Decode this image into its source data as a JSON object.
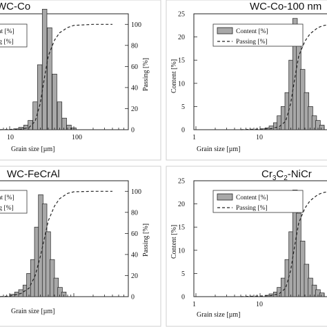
{
  "chart_data": [
    {
      "type": "bar",
      "title": "WC-Co",
      "xlabel": "Grain size [µm]",
      "ylabel": "",
      "y2label": "Passing [%]",
      "xscale": "log",
      "xticks": [
        "10",
        "100"
      ],
      "yticks": [],
      "y2ticks": [
        "0",
        "20",
        "40",
        "60",
        "80",
        "100"
      ],
      "ylim": [
        0,
        25
      ],
      "y2lim": [
        0,
        110
      ],
      "legend": [
        "Content [%]",
        "Passing [%]"
      ],
      "legend_position": "top-left",
      "series": [
        {
          "name": "Content [%]",
          "x": [
            12.5,
            15,
            18,
            21,
            25,
            29.5,
            35,
            42,
            50,
            60,
            71,
            84,
            100
          ],
          "values": [
            0.2,
            0.5,
            1,
            2,
            6,
            14,
            26,
            22,
            12,
            6,
            2.5,
            1,
            0.4
          ]
        },
        {
          "name": "Passing [%]",
          "x": [
            5,
            15,
            20,
            25,
            30,
            35,
            40,
            50,
            60,
            80,
            100,
            200,
            400
          ],
          "values": [
            0,
            0.5,
            2,
            8,
            25,
            50,
            70,
            85,
            92,
            97,
            99,
            100,
            100
          ]
        }
      ]
    },
    {
      "type": "bar",
      "title": "WC-Co-100 nm",
      "xlabel": "Grain size [µm]",
      "ylabel": "Content [%]",
      "y2label": "",
      "xscale": "log",
      "xticks": [
        "1",
        "10"
      ],
      "yticks": [
        "0",
        "5",
        "10",
        "15",
        "20",
        "25"
      ],
      "y2ticks": [],
      "ylim": [
        0,
        25
      ],
      "y2lim": [
        0,
        110
      ],
      "legend": [
        "Content [%]",
        "Passing [%]"
      ],
      "legend_position": "top-right",
      "series": [
        {
          "name": "Content [%]",
          "x": [
            11,
            13,
            15,
            17.5,
            20,
            23,
            26.5,
            30.5,
            35,
            40,
            46,
            53,
            61,
            70,
            80,
            92
          ],
          "values": [
            0.2,
            0.4,
            0.8,
            1.5,
            3,
            5,
            8,
            15,
            24,
            20,
            13,
            8,
            5,
            3,
            2,
            1
          ]
        },
        {
          "name": "Passing [%]",
          "x": [
            5,
            15,
            20,
            25,
            30,
            35,
            40,
            50,
            60,
            80,
            100,
            200
          ],
          "values": [
            0,
            1,
            3,
            8,
            25,
            50,
            70,
            84,
            91,
            97,
            99,
            100
          ]
        }
      ]
    },
    {
      "type": "bar",
      "title": "WC-FeCrAl",
      "xlabel": "Grain size [µm]",
      "ylabel": "",
      "y2label": "Passing [%]",
      "xscale": "log",
      "xticks": [],
      "yticks": [],
      "y2ticks": [
        "0",
        "20",
        "40",
        "60",
        "80",
        "100"
      ],
      "ylim": [
        0,
        25
      ],
      "y2lim": [
        0,
        110
      ],
      "legend": [
        "Content [%]",
        "Passing [%]"
      ],
      "legend_position": "top-left",
      "series": [
        {
          "name": "Content [%]",
          "x": [
            11,
            13,
            15,
            17.5,
            20,
            23,
            26.5,
            30.5,
            35,
            40,
            46,
            53,
            61,
            70
          ],
          "values": [
            0.5,
            1,
            1.5,
            2.5,
            5,
            8,
            15,
            22,
            20,
            14,
            8,
            4,
            2,
            1
          ]
        },
        {
          "name": "Passing [%]",
          "x": [
            5,
            10,
            15,
            20,
            25,
            30,
            35,
            40,
            50,
            60,
            80,
            100,
            200,
            400
          ],
          "values": [
            0,
            0.5,
            3,
            8,
            20,
            38,
            56,
            72,
            86,
            93,
            98,
            99.5,
            100,
            100
          ]
        }
      ]
    },
    {
      "type": "bar",
      "title": "Cr3C2-NiCr",
      "title_main": "Cr",
      "title_sub1": "3",
      "title_mid": "C",
      "title_sub2": "2",
      "title_end": "-NiCr",
      "xlabel": "Grain size [µm]",
      "ylabel": "Content [%]",
      "y2label": "",
      "xscale": "log",
      "xticks": [
        "1",
        "10"
      ],
      "yticks": [
        "0",
        "5",
        "10",
        "15",
        "20",
        "25"
      ],
      "y2ticks": [],
      "ylim": [
        0,
        25
      ],
      "y2lim": [
        0,
        110
      ],
      "legend": [
        "Content [%]",
        "Passing [%]"
      ],
      "legend_position": "top-right",
      "series": [
        {
          "name": "Content [%]",
          "x": [
            13,
            15,
            17.5,
            20,
            23,
            26.5,
            30.5,
            35,
            40,
            46,
            53,
            61,
            70,
            80,
            92
          ],
          "values": [
            0.3,
            0.6,
            1,
            2,
            4,
            8,
            14,
            23,
            18,
            12,
            7,
            4,
            2.5,
            1.5,
            0.8
          ]
        },
        {
          "name": "Passing [%]",
          "x": [
            5,
            15,
            20,
            25,
            30,
            35,
            40,
            50,
            60,
            80,
            100,
            200
          ],
          "values": [
            0,
            1,
            3,
            8,
            25,
            50,
            70,
            84,
            91,
            97,
            99,
            100
          ]
        }
      ]
    }
  ]
}
